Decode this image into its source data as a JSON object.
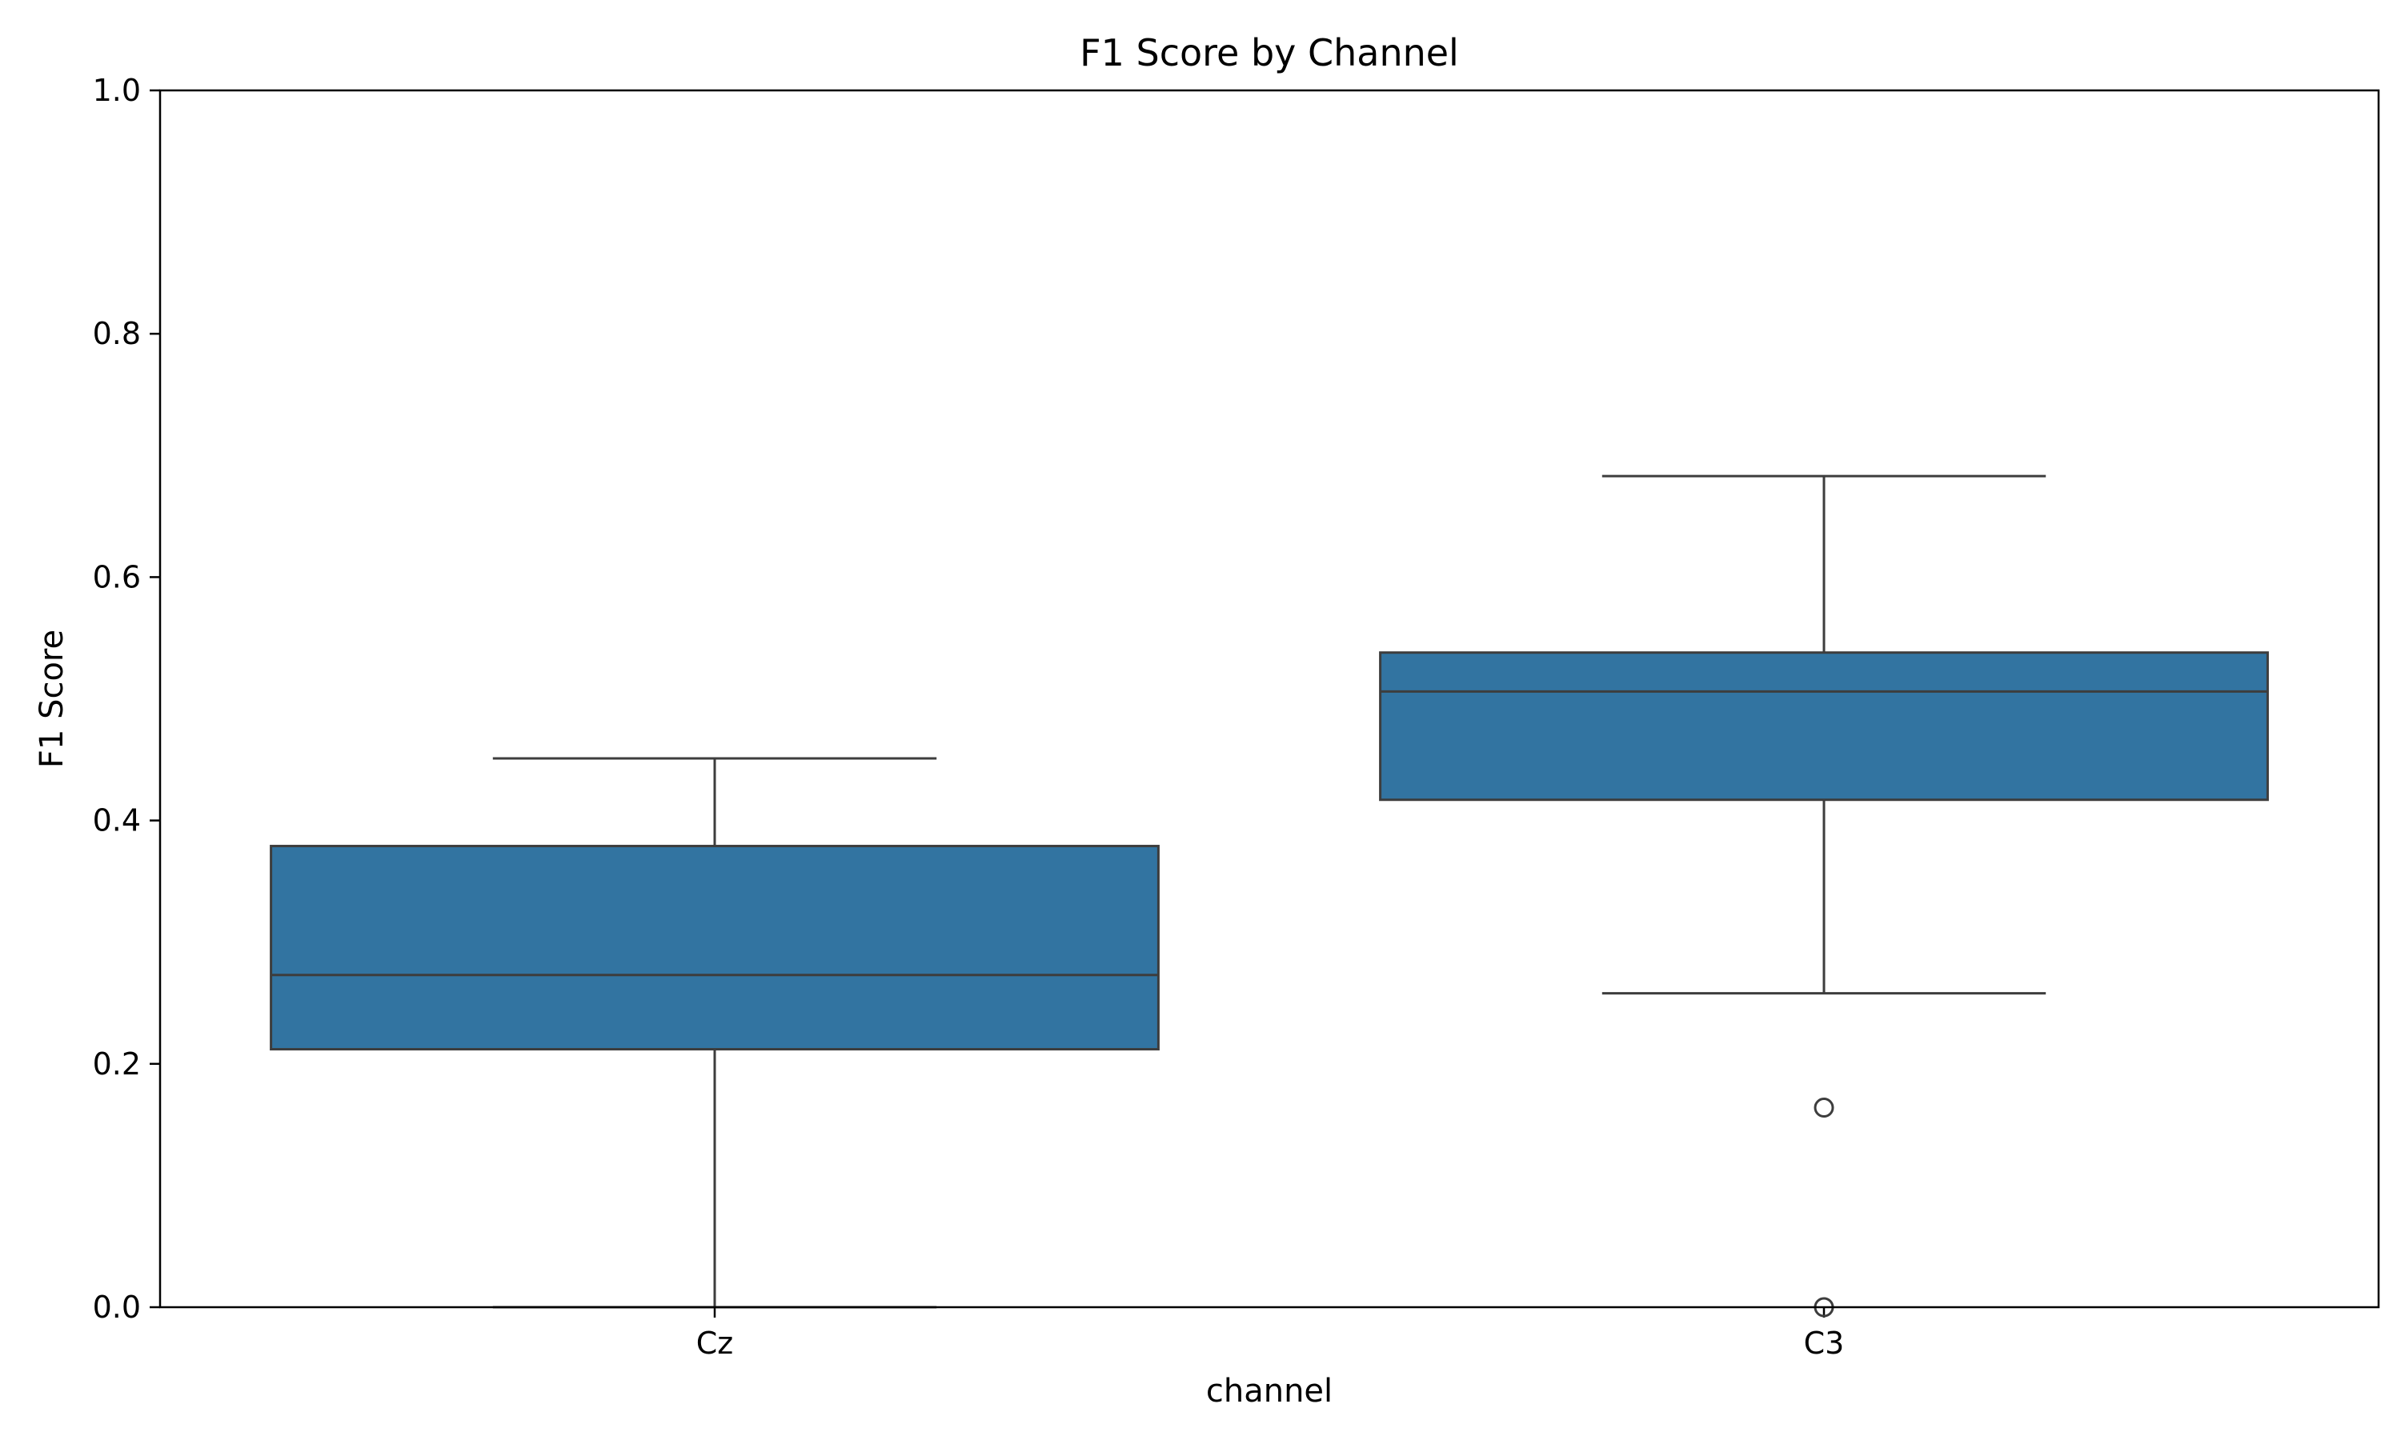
{
  "chart_data": {
    "type": "box",
    "title": "F1 Score by Channel",
    "xlabel": "channel",
    "ylabel": "F1 Score",
    "ylim": [
      0,
      1
    ],
    "yticks": [
      "0.0",
      "0.2",
      "0.4",
      "0.6",
      "0.8",
      "1.0"
    ],
    "categories": [
      "Cz",
      "C3"
    ],
    "boxes": [
      {
        "category": "Cz",
        "whisker_low": 0.0,
        "q1": 0.212,
        "median": 0.273,
        "q3": 0.379,
        "whisker_high": 0.451,
        "outliers": []
      },
      {
        "category": "C3",
        "whisker_low": 0.258,
        "q1": 0.417,
        "median": 0.506,
        "q3": 0.538,
        "whisker_high": 0.683,
        "outliers": [
          0.164,
          0.0
        ]
      }
    ],
    "grid": false,
    "colors": {
      "box_fill": "#3274a1",
      "box_edge": "#3d3d3d",
      "axis": "#000000"
    }
  }
}
